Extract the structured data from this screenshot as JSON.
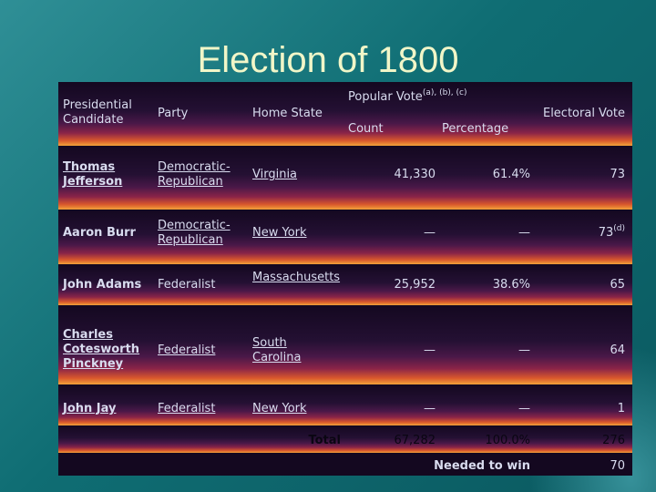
{
  "title": "Election of 1800",
  "headers": {
    "candidate": "Presidential Candidate",
    "party": "Party",
    "home_state": "Home State",
    "popular_vote": "Popular Vote",
    "popular_vote_notes": "(a), (b), (c)",
    "count": "Count",
    "percentage": "Percentage",
    "electoral_vote": "Electoral Vote"
  },
  "rows": [
    {
      "candidate": "Thomas Jefferson",
      "party": "Democratic-Republican",
      "state": "Virginia",
      "count": "41,330",
      "percentage": "61.4%",
      "electoral": "73",
      "electoral_note": ""
    },
    {
      "candidate": "Aaron Burr",
      "party": "Democratic-Republican",
      "state": "New York",
      "count": "—",
      "percentage": "—",
      "electoral": "73",
      "electoral_note": "(d)"
    },
    {
      "candidate": "John Adams",
      "party": "Federalist",
      "state": "Massachusetts",
      "count": "25,952",
      "percentage": "38.6%",
      "electoral": "65",
      "electoral_note": ""
    },
    {
      "candidate": "Charles Cotesworth Pinckney",
      "party": "Federalist",
      "state": "South Carolina",
      "count": "—",
      "percentage": "—",
      "electoral": "64",
      "electoral_note": ""
    },
    {
      "candidate": "John Jay",
      "party": "Federalist",
      "state": "New York",
      "count": "—",
      "percentage": "—",
      "electoral": "1",
      "electoral_note": ""
    }
  ],
  "total": {
    "label": "Total",
    "count": "67,282",
    "percentage": "100.0%",
    "electoral": "276"
  },
  "needed": {
    "label": "Needed to win",
    "electoral": "70"
  }
}
